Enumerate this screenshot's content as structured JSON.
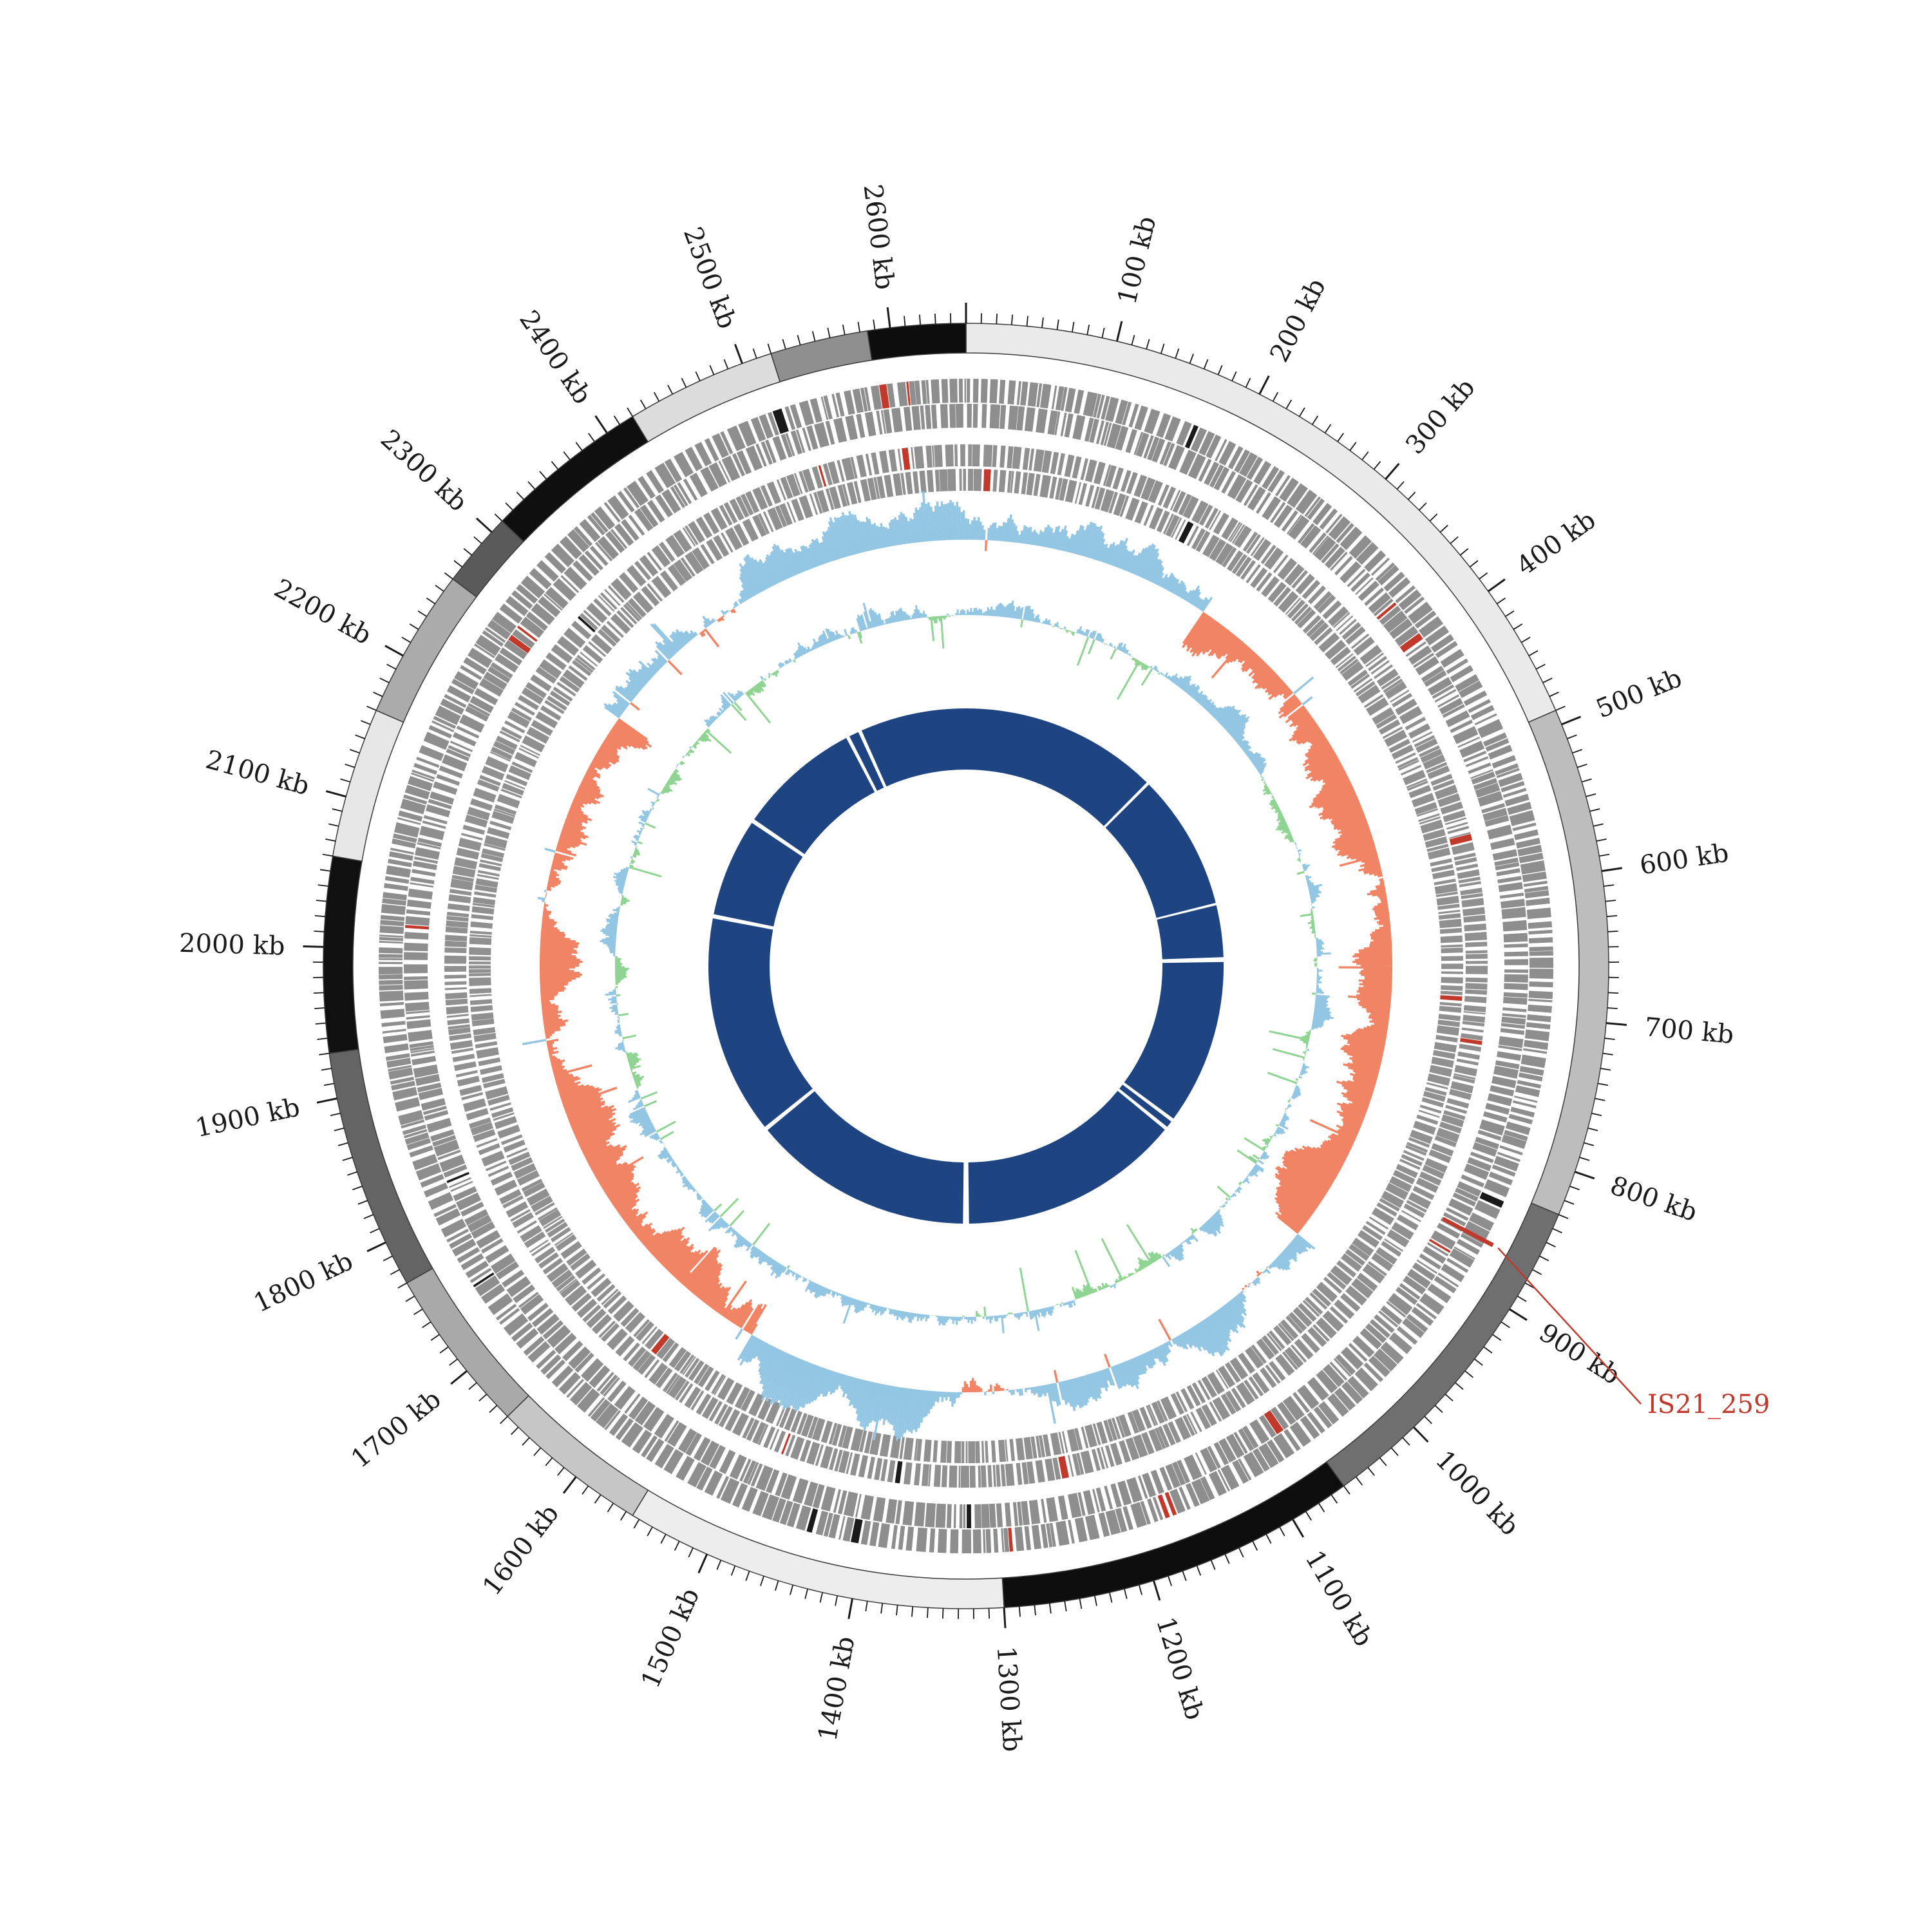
{
  "chart_data": {
    "type": "circular-genome-plot",
    "description": "Circos-style circular bacterial genome map with karyotype ring, two gene tracks, GC-skew track, GC-content track and inner contig ring",
    "genome_length_kb": 2650,
    "unit": "kb",
    "direction": "clockwise",
    "center": [
      1500,
      1500
    ],
    "seed": 1337,
    "ticks": {
      "minor_interval_kb": 10,
      "major_interval_kb": 100,
      "r_base": 998,
      "minor_len": 16,
      "major_len": 32,
      "label_r": 1058,
      "font_size": 40,
      "color": "#1a1a1a",
      "labels": [
        "100 kb",
        "200 kb",
        "300 kb",
        "400 kb",
        "500 kb",
        "600 kb",
        "700 kb",
        "800 kb",
        "900 kb",
        "1000 kb",
        "1100 kb",
        "1200 kb",
        "1300 kb",
        "1400 kb",
        "1500 kb",
        "1600 kb",
        "1700 kb",
        "1800 kb",
        "1900 kb",
        "2000 kb",
        "2100 kb",
        "2200 kb",
        "2300 kb",
        "2400 kb",
        "2500 kb",
        "2600 kb"
      ]
    },
    "karyotype_ring": {
      "r_inner": 952,
      "r_outer": 998,
      "stroke": "#3a3a3a",
      "segments": [
        {
          "start": 0,
          "end": 490,
          "color": "#eaeaea"
        },
        {
          "start": 490,
          "end": 830,
          "color": "#bdbdbd"
        },
        {
          "start": 830,
          "end": 1060,
          "color": "#6f6f6f"
        },
        {
          "start": 1060,
          "end": 1300,
          "color": "#0e0e0e"
        },
        {
          "start": 1300,
          "end": 1555,
          "color": "#ededed"
        },
        {
          "start": 1555,
          "end": 1660,
          "color": "#c6c6c6"
        },
        {
          "start": 1660,
          "end": 1770,
          "color": "#a9a9a9"
        },
        {
          "start": 1770,
          "end": 1930,
          "color": "#646464"
        },
        {
          "start": 1930,
          "end": 2060,
          "color": "#101010"
        },
        {
          "start": 2060,
          "end": 2160,
          "color": "#e7e7e7"
        },
        {
          "start": 2160,
          "end": 2260,
          "color": "#ababab"
        },
        {
          "start": 2260,
          "end": 2310,
          "color": "#5a5a5a"
        },
        {
          "start": 2310,
          "end": 2420,
          "color": "#0f0f0f"
        },
        {
          "start": 2420,
          "end": 2520,
          "color": "#dcdcdc"
        },
        {
          "start": 2520,
          "end": 2585,
          "color": "#8f8f8f"
        },
        {
          "start": 2585,
          "end": 2650,
          "color": "#0d0d0d"
        }
      ]
    },
    "gene_track_outer": {
      "rows": [
        {
          "r_inner": 875,
          "r_outer": 912
        },
        {
          "r_inner": 836,
          "r_outer": 873
        }
      ],
      "block_kb_min": 1.2,
      "block_kb_max": 7.5,
      "gap_kb_min": 0.2,
      "gap_kb_max": 3.4,
      "color": "#8e8e8e",
      "red_color": "#c0392b",
      "black_color": "#1a1a1a",
      "red_fraction": 0.012,
      "black_fraction": 0.004
    },
    "gene_track_inner": {
      "rows": [
        {
          "r_inner": 776,
          "r_outer": 810
        },
        {
          "r_inner": 738,
          "r_outer": 772
        }
      ],
      "block_kb_min": 1.2,
      "block_kb_max": 7.0,
      "gap_kb_min": 0.2,
      "gap_kb_max": 3.2,
      "color": "#909090",
      "red_color": "#c0392b",
      "black_color": "#1a1a1a",
      "red_fraction": 0.01,
      "black_fraction": 0.003
    },
    "gc_skew_track": {
      "bin_kb": 2,
      "baseline_r": 662,
      "scale": 88,
      "bar_width": 3.4,
      "volatility": 0.22,
      "damping": 0.96,
      "bias_amp": 0.48,
      "spike_prob": 0.03,
      "spike_amp": 1.3,
      "spike_neg_frac": 0.5,
      "pos_color": "#93c6e3",
      "neg_color": "#f08465",
      "sign_regions": [
        {
          "from": 2250,
          "to": 250,
          "sign": 1
        },
        {
          "from": 250,
          "to": 950,
          "sign": -1
        },
        {
          "from": 950,
          "to": 1550,
          "sign": 1
        },
        {
          "from": 1550,
          "to": 2250,
          "sign": -1
        }
      ]
    },
    "gc_content_track": {
      "bin_kb": 2,
      "baseline_r": 545,
      "scale": 72,
      "bar_width": 3.0,
      "volatility": 0.2,
      "damping": 0.93,
      "bias": 0.12,
      "spike_prob": 0.06,
      "spike_amp": 1.1,
      "spike_neg_frac": 0.78,
      "pos_color": "#93c6e3",
      "neg_color": "#8fd492",
      "boost_regions": [
        {
          "from": 1050,
          "to": 1500,
          "factor": 1.8
        }
      ]
    },
    "contig_ring": {
      "r_inner": 305,
      "r_outer": 400,
      "color": "#1e4482",
      "segments": [
        [
          0,
          328
        ],
        [
          333,
          558
        ],
        [
          562,
          648
        ],
        [
          656,
          930
        ],
        [
          936,
          947
        ],
        [
          953,
          1320
        ],
        [
          1330,
          1696
        ],
        [
          1703,
          2066
        ],
        [
          2073,
          2236
        ],
        [
          2243,
          2446
        ],
        [
          2452,
          2468
        ],
        [
          2474,
          2650
        ]
      ]
    },
    "annotation": {
      "label": "IS21_259",
      "position_kb": 868,
      "color": "#c0392b",
      "marker_r_inner": 838,
      "marker_r_outer": 926,
      "line_from_r": 935,
      "line_to_xy": [
        2548,
        2180
      ],
      "label_xy": [
        2558,
        2194
      ],
      "font_size": 40
    }
  }
}
